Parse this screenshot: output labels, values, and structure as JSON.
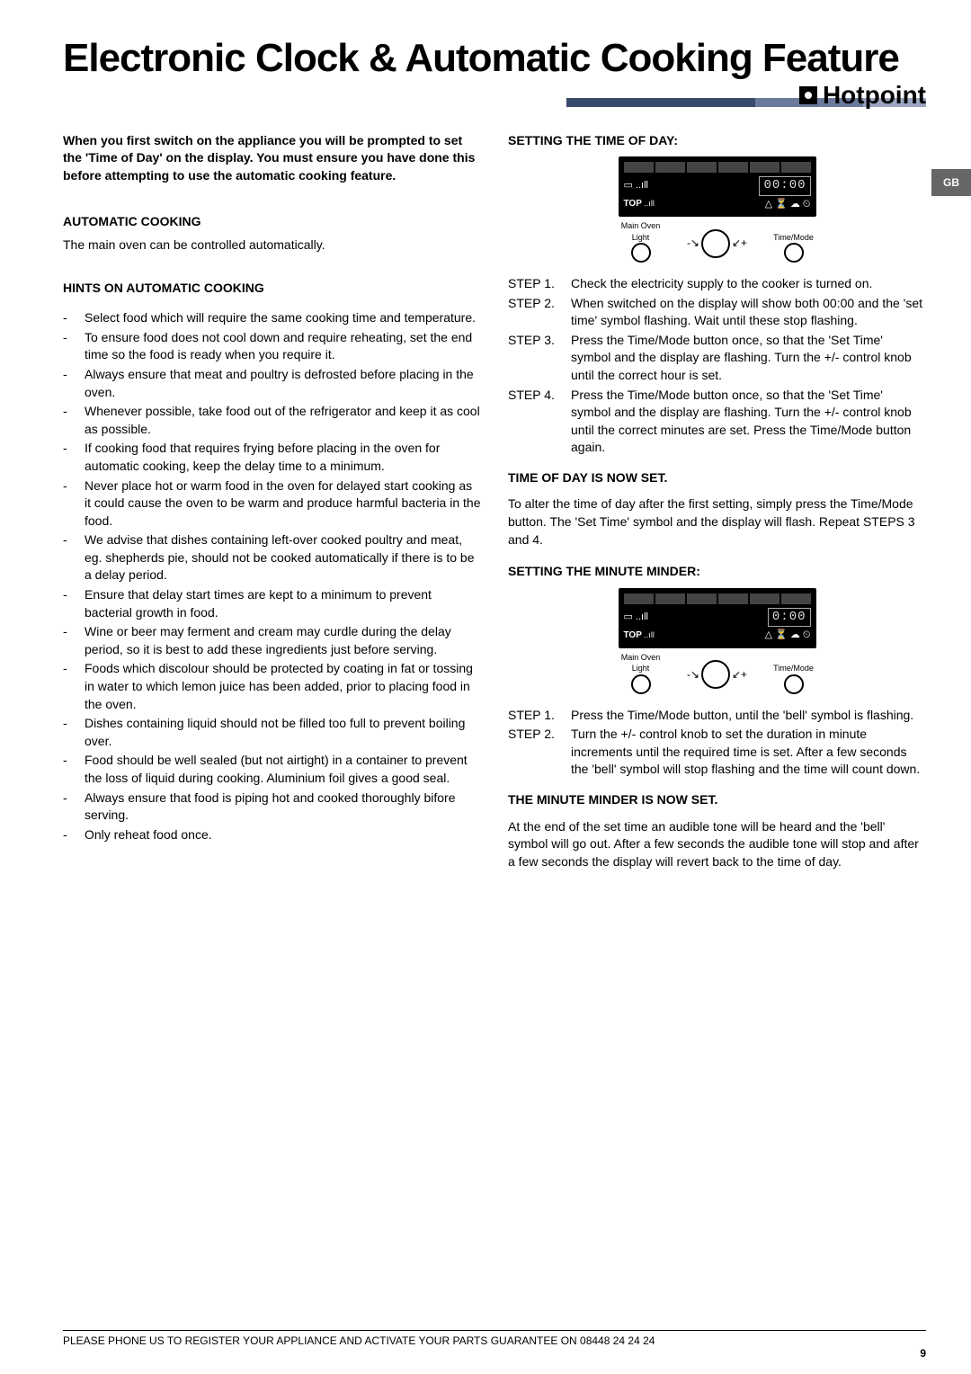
{
  "title": "Electronic Clock & Automatic Cooking Feature",
  "brand": "Hotpoint",
  "gb": "GB",
  "intro": "When you first switch on the appliance you will be prompted to set the 'Time of Day' on the display. You must ensure you have done this before attempting to use the automatic cooking feature.",
  "auto_hdr": "AUTOMATIC COOKING",
  "auto_sub": "The main oven can be controlled automatically.",
  "hints_hdr": "HINTS ON AUTOMATIC COOKING",
  "hints": [
    "Select food which will require the same cooking time and temperature.",
    "To ensure food does not cool down and require reheating, set the end time so the food is ready when you require it.",
    "Always ensure that meat and poultry is defrosted before placing in the oven.",
    "Whenever possible, take food out of the refrigerator and keep it as cool as possible.",
    "If cooking food that requires frying before placing in the oven for automatic cooking, keep the delay time to a minimum.",
    "Never place hot or warm food in the oven for delayed start cooking as it could cause the oven to be warm and produce harmful bacteria in the food.",
    "We advise that dishes containing left-over cooked poultry and meat, eg. shepherds pie, should not be cooked automatically if there is to be a delay period.",
    "Ensure that delay start times are kept to a minimum to prevent bacterial growth in food.",
    "Wine or beer may ferment and cream may curdle during the delay period, so it is best to add these ingredients just before serving.",
    "Foods which discolour should be protected by coating in fat or tossing in water to which lemon juice has been added, prior to placing food in the oven.",
    "Dishes containing liquid should not be filled too full to prevent boiling over.",
    "Food should be well sealed (but not airtight) in a container to prevent the loss of liquid during cooking. Aluminium foil gives a good seal.",
    "Always ensure that food is piping hot and cooked thoroughly bifore serving.",
    "Only reheat food once."
  ],
  "set_time_hdr": "SETTING THE TIME OF DAY:",
  "panel": {
    "top_label": "TOP",
    "lcd1": "00:00",
    "lcd2": "0:00",
    "main_oven": "Main Oven",
    "light": "Light",
    "time_mode": "Time/Mode"
  },
  "steps_time": [
    {
      "label": "STEP 1.",
      "text": "Check the electricity supply to the cooker is turned on."
    },
    {
      "label": "STEP 2.",
      "text": "When switched on the display will show both 00:00 and the 'set time' symbol flashing. Wait until these stop flashing."
    },
    {
      "label": "STEP 3.",
      "text": "Press the Time/Mode button once, so that the 'Set Time' symbol and the display are flashing. Turn the +/- control knob until the correct hour is set."
    },
    {
      "label": "STEP 4.",
      "text": "Press the Time/Mode button once, so that the 'Set Time' symbol and the display are flashing. Turn the +/- control knob until the correct minutes are set. Press the Time/Mode button again."
    }
  ],
  "time_set_hdr": "TIME OF DAY IS NOW SET.",
  "time_set_text": "To alter the time of day after the first setting, simply press the Time/Mode button. The 'Set Time' symbol and the display will flash. Repeat STEPS 3 and 4.",
  "minute_hdr": "SETTING THE MINUTE MINDER:",
  "steps_minute": [
    {
      "label": "STEP 1.",
      "text": "Press the Time/Mode button, until the 'bell' symbol is flashing."
    },
    {
      "label": "STEP 2.",
      "text": "Turn the +/- control knob to set the duration in minute increments until the required time is set. After a few seconds the 'bell' symbol will stop flashing and the time will count down."
    }
  ],
  "minute_set_hdr": "THE MINUTE MINDER IS NOW SET.",
  "minute_set_text": "At the end of the set time an audible tone will be heard and the 'bell' symbol will go out. After a few seconds the audible tone will stop and after a few seconds the display will revert back to the time of day.",
  "footer": "PLEASE PHONE US TO REGISTER YOUR APPLIANCE  AND ACTIVATE YOUR PARTS GUARANTEE ON 08448 24 24 24",
  "pagenum": "9",
  "accent_colors": [
    "#3a4a6b",
    "#6b7a9b",
    "#9aa5c0"
  ],
  "accent_widths": [
    "210px",
    "120px",
    "70px"
  ]
}
